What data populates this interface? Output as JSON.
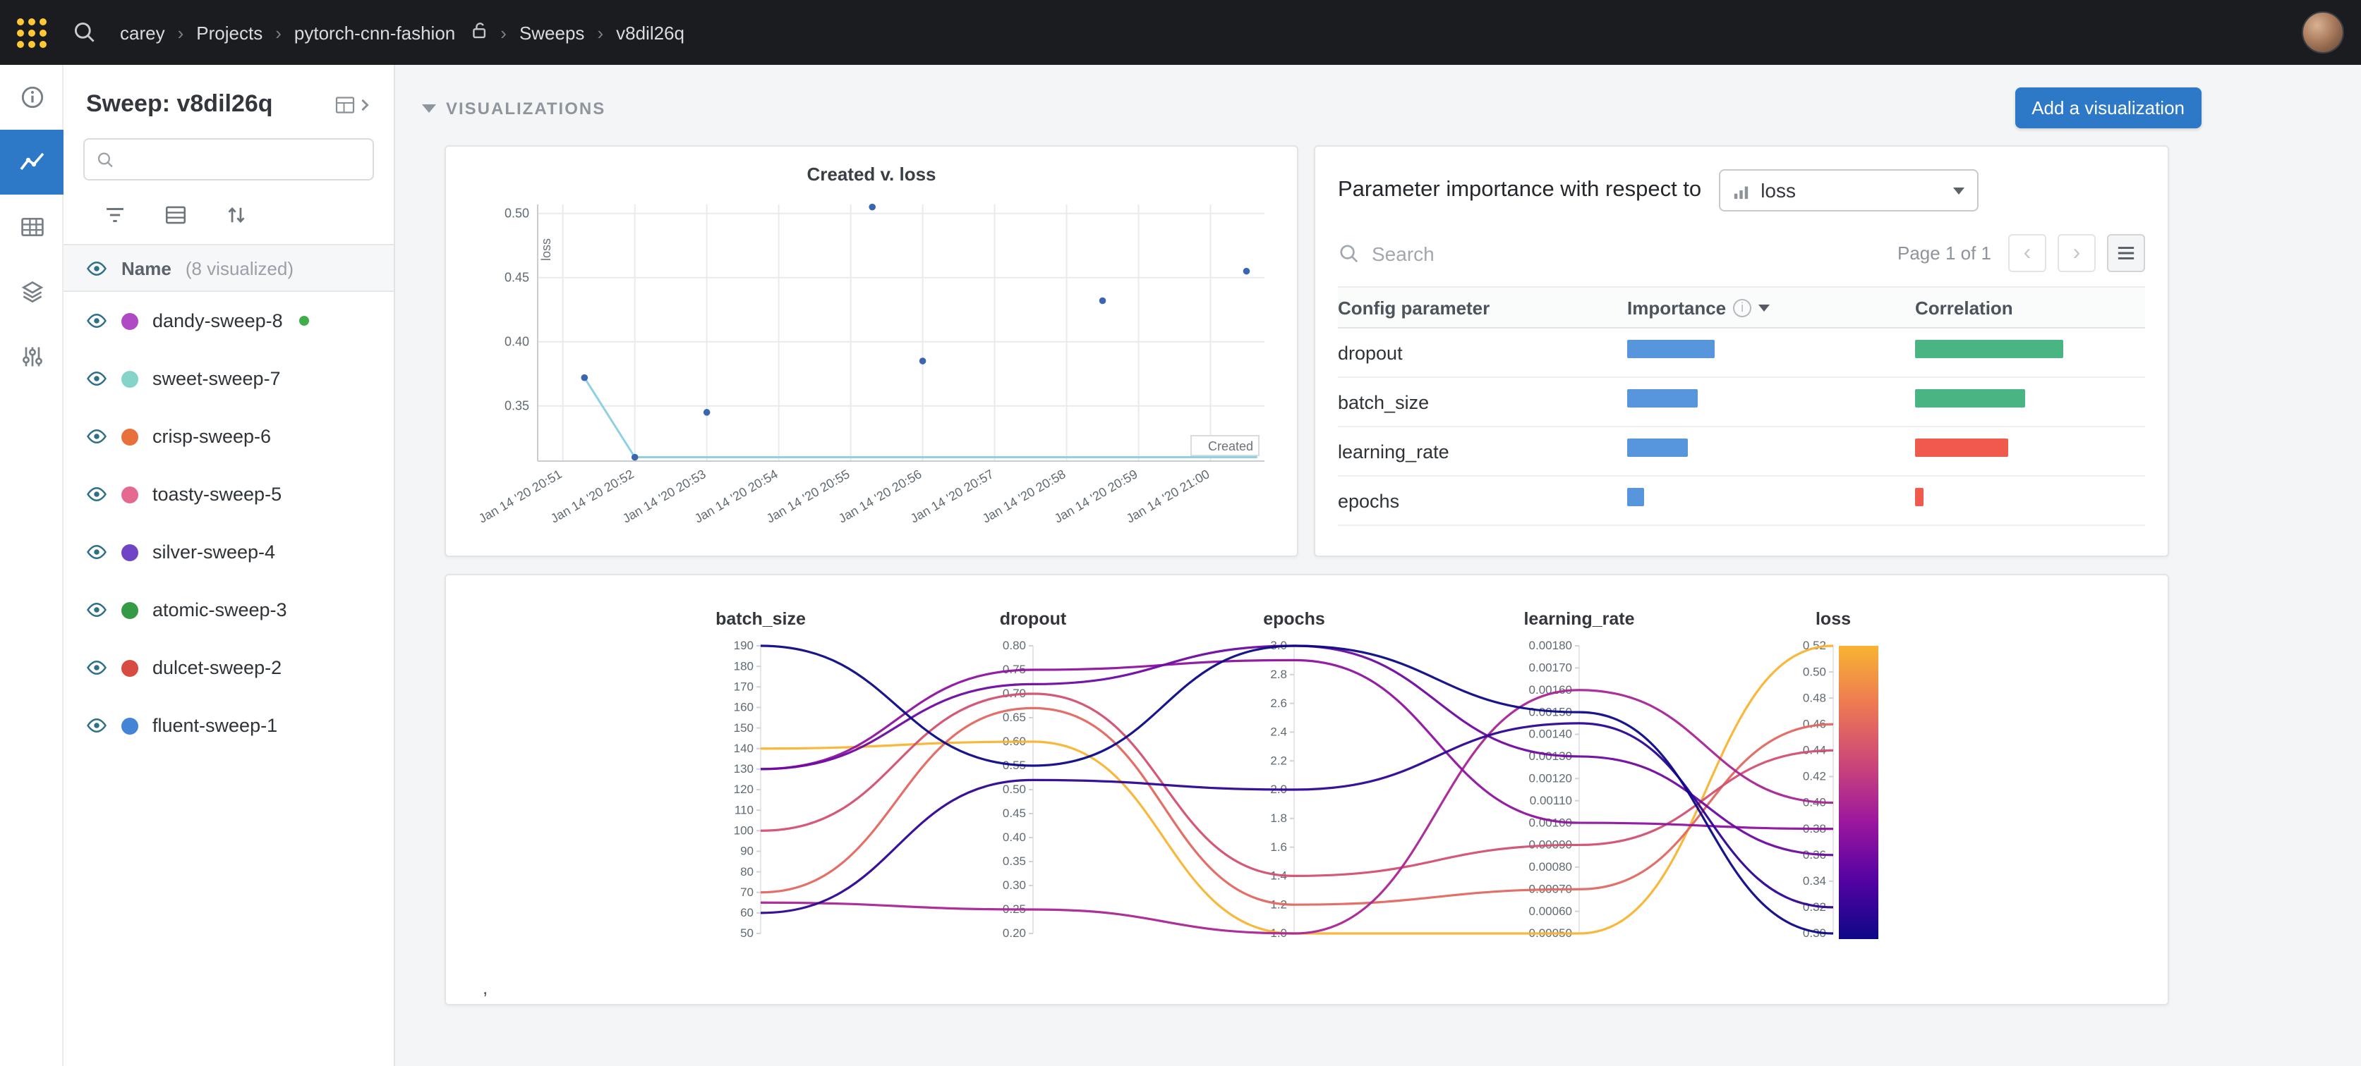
{
  "colors": {
    "accent_blue": "#2e78c8",
    "importance_bar": "#5795dd",
    "correlation_positive": "#48b583",
    "correlation_negative": "#ef5a4c"
  },
  "topbar": {
    "separator": "›",
    "breadcrumb": [
      {
        "label": "carey"
      },
      {
        "label": "Projects"
      },
      {
        "label": "pytorch-cnn-fashion"
      },
      {
        "label": "Sweeps"
      },
      {
        "label": "v8dil26q"
      }
    ]
  },
  "sidebar": {
    "title": "Sweep: v8dil26q",
    "list_header": {
      "name": "Name",
      "annotation": "(8 visualized)"
    },
    "runs": [
      {
        "name": "dandy-sweep-8",
        "color": "#b04ac4",
        "running": true
      },
      {
        "name": "sweet-sweep-7",
        "color": "#84d4c9",
        "running": false
      },
      {
        "name": "crisp-sweep-6",
        "color": "#e8703a",
        "running": false
      },
      {
        "name": "toasty-sweep-5",
        "color": "#e56a90",
        "running": false
      },
      {
        "name": "silver-sweep-4",
        "color": "#6f45c5",
        "running": false
      },
      {
        "name": "atomic-sweep-3",
        "color": "#349a46",
        "running": false
      },
      {
        "name": "dulcet-sweep-2",
        "color": "#d84b40",
        "running": false
      },
      {
        "name": "fluent-sweep-1",
        "color": "#4285d6",
        "running": false
      }
    ]
  },
  "main": {
    "section_title": "VISUALIZATIONS",
    "add_button_label": "Add a visualization",
    "stray_text": ","
  },
  "importance_panel": {
    "title_prefix": "Parameter importance with respect to",
    "metric_select": "loss",
    "search_placeholder": "Search",
    "pagination": "Page 1 of 1",
    "columns": [
      "Config parameter",
      "Importance",
      "Correlation"
    ],
    "rows": [
      {
        "parameter": "dropout",
        "importance": 0.56,
        "correlation": 0.93
      },
      {
        "parameter": "batch_size",
        "importance": 0.45,
        "correlation": 0.69
      },
      {
        "parameter": "learning_rate",
        "importance": 0.39,
        "correlation": -0.58
      },
      {
        "parameter": "epochs",
        "importance": 0.11,
        "correlation": -0.05
      }
    ]
  },
  "chart_data": [
    {
      "type": "scatter",
      "title": "Created v. loss",
      "xlabel": "Created",
      "ylabel": "loss",
      "x_tick_labels": [
        "Jan 14 '20 20:51",
        "Jan 14 '20 20:52",
        "Jan 14 '20 20:53",
        "Jan 14 '20 20:54",
        "Jan 14 '20 20:55",
        "Jan 14 '20 20:56",
        "Jan 14 '20 20:57",
        "Jan 14 '20 20:58",
        "Jan 14 '20 20:59",
        "Jan 14 '20 21:00"
      ],
      "xlim": [
        -0.35,
        9.75
      ],
      "ylim": [
        0.307,
        0.507
      ],
      "y_ticks": [
        0.35,
        0.4,
        0.45,
        0.5
      ],
      "grid": true,
      "point_color": "#3a66b0",
      "line_color": "#8fd0e3",
      "points": [
        {
          "x": 0.3,
          "y": 0.372
        },
        {
          "x": 1.0,
          "y": 0.31
        },
        {
          "x": 2.0,
          "y": 0.345
        },
        {
          "x": 4.3,
          "y": 0.505
        },
        {
          "x": 5.0,
          "y": 0.385
        },
        {
          "x": 7.5,
          "y": 0.432
        },
        {
          "x": 9.5,
          "y": 0.455
        }
      ],
      "line": [
        {
          "x": 0.3,
          "y": 0.372
        },
        {
          "x": 1.0,
          "y": 0.31
        },
        {
          "x": 9.65,
          "y": 0.31
        }
      ]
    },
    {
      "type": "parallel-coordinates",
      "color_by": "loss",
      "color_map": "plasma",
      "legend_position": "right",
      "axes": [
        {
          "name": "batch_size",
          "min": 50,
          "max": 190,
          "tick_step": 10,
          "format": "int"
        },
        {
          "name": "dropout",
          "min": 0.2,
          "max": 0.8,
          "tick_step": 0.05,
          "format": "2dp"
        },
        {
          "name": "epochs",
          "min": 1.0,
          "max": 3.0,
          "tick_step": 0.2,
          "format": "1dp"
        },
        {
          "name": "learning_rate",
          "min": 0.0005,
          "max": 0.0018,
          "tick_step": 0.0001,
          "format": "5dp"
        },
        {
          "name": "loss",
          "min": 0.3,
          "max": 0.52,
          "tick_step": 0.02,
          "format": "2dp"
        }
      ],
      "runs": [
        {
          "batch_size": 140,
          "dropout": 0.6,
          "epochs": 1.0,
          "learning_rate": 0.0005,
          "loss": 0.52
        },
        {
          "batch_size": 70,
          "dropout": 0.67,
          "epochs": 1.2,
          "learning_rate": 0.0007,
          "loss": 0.46
        },
        {
          "batch_size": 100,
          "dropout": 0.7,
          "epochs": 1.4,
          "learning_rate": 0.0009,
          "loss": 0.44
        },
        {
          "batch_size": 65,
          "dropout": 0.25,
          "epochs": 1.0,
          "learning_rate": 0.0016,
          "loss": 0.4
        },
        {
          "batch_size": 130,
          "dropout": 0.75,
          "epochs": 2.9,
          "learning_rate": 0.001,
          "loss": 0.38
        },
        {
          "batch_size": 130,
          "dropout": 0.72,
          "epochs": 3.0,
          "learning_rate": 0.0013,
          "loss": 0.36
        },
        {
          "batch_size": 60,
          "dropout": 0.52,
          "epochs": 2.0,
          "learning_rate": 0.00145,
          "loss": 0.32
        },
        {
          "batch_size": 190,
          "dropout": 0.55,
          "epochs": 3.0,
          "learning_rate": 0.0015,
          "loss": 0.3
        }
      ]
    }
  ]
}
